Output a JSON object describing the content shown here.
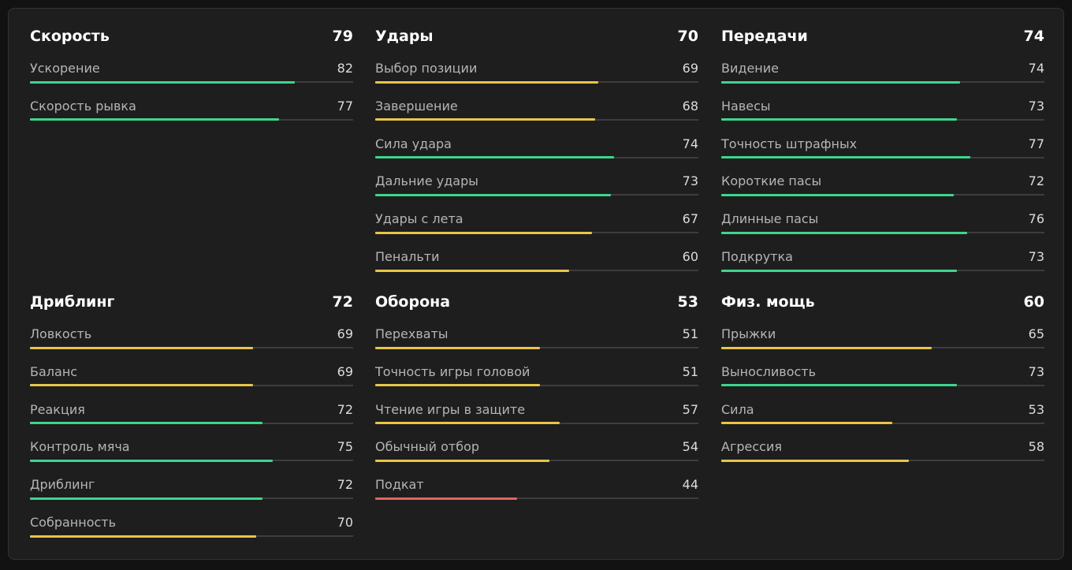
{
  "bar_max": 100,
  "groups": [
    {
      "title": "Скорость",
      "value": 79,
      "items": [
        {
          "label": "Ускорение",
          "value": 82,
          "color": "#3dd68c"
        },
        {
          "label": "Скорость рывка",
          "value": 77,
          "color": "#3dd68c"
        }
      ]
    },
    {
      "title": "Удары",
      "value": 70,
      "items": [
        {
          "label": "Выбор позиции",
          "value": 69,
          "color": "#e8c547"
        },
        {
          "label": "Завершение",
          "value": 68,
          "color": "#e8c547"
        },
        {
          "label": "Сила удара",
          "value": 74,
          "color": "#3dd68c"
        },
        {
          "label": "Дальние удары",
          "value": 73,
          "color": "#3dd68c"
        },
        {
          "label": "Удары с лета",
          "value": 67,
          "color": "#e8c547"
        },
        {
          "label": "Пенальти",
          "value": 60,
          "color": "#e8c547"
        }
      ]
    },
    {
      "title": "Передачи",
      "value": 74,
      "items": [
        {
          "label": "Видение",
          "value": 74,
          "color": "#3dd68c"
        },
        {
          "label": "Навесы",
          "value": 73,
          "color": "#3dd68c"
        },
        {
          "label": "Точность штрафных",
          "value": 77,
          "color": "#3dd68c"
        },
        {
          "label": "Короткие пасы",
          "value": 72,
          "color": "#3dd68c"
        },
        {
          "label": "Длинные пасы",
          "value": 76,
          "color": "#3dd68c"
        },
        {
          "label": "Подкрутка",
          "value": 73,
          "color": "#3dd68c"
        }
      ]
    },
    {
      "title": "Дриблинг",
      "value": 72,
      "items": [
        {
          "label": "Ловкость",
          "value": 69,
          "color": "#e8c547"
        },
        {
          "label": "Баланс",
          "value": 69,
          "color": "#e8c547"
        },
        {
          "label": "Реакция",
          "value": 72,
          "color": "#3dd68c"
        },
        {
          "label": "Контроль мяча",
          "value": 75,
          "color": "#3dd68c"
        },
        {
          "label": "Дриблинг",
          "value": 72,
          "color": "#3dd68c"
        },
        {
          "label": "Собранность",
          "value": 70,
          "color": "#e8c547"
        }
      ]
    },
    {
      "title": "Оборона",
      "value": 53,
      "items": [
        {
          "label": "Перехваты",
          "value": 51,
          "color": "#e8c547"
        },
        {
          "label": "Точность игры головой",
          "value": 51,
          "color": "#e8c547"
        },
        {
          "label": "Чтение игры в защите",
          "value": 57,
          "color": "#e8c547"
        },
        {
          "label": "Обычный отбор",
          "value": 54,
          "color": "#e8c547"
        },
        {
          "label": "Подкат",
          "value": 44,
          "color": "#e0665c"
        }
      ]
    },
    {
      "title": "Физ. мощь",
      "value": 60,
      "items": [
        {
          "label": "Прыжки",
          "value": 65,
          "color": "#e8c547"
        },
        {
          "label": "Выносливость",
          "value": 73,
          "color": "#3dd68c"
        },
        {
          "label": "Сила",
          "value": 53,
          "color": "#e8c547"
        },
        {
          "label": "Агрессия",
          "value": 58,
          "color": "#e8c547"
        }
      ]
    }
  ]
}
